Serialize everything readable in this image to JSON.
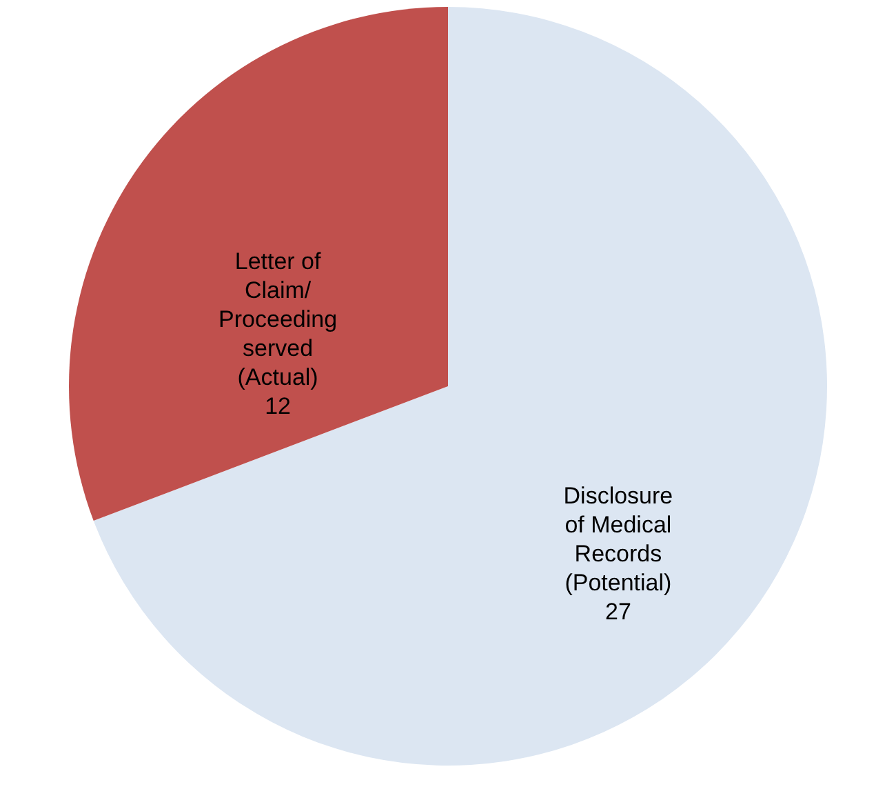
{
  "chart_data": {
    "type": "pie",
    "categories": [
      "Disclosure of Medical Records (Potential)",
      "Letter of Claim/ Proceeding served (Actual)"
    ],
    "values": [
      27,
      12
    ],
    "colors": [
      "#dce6f2",
      "#c0504d"
    ],
    "data_labels": true
  }
}
